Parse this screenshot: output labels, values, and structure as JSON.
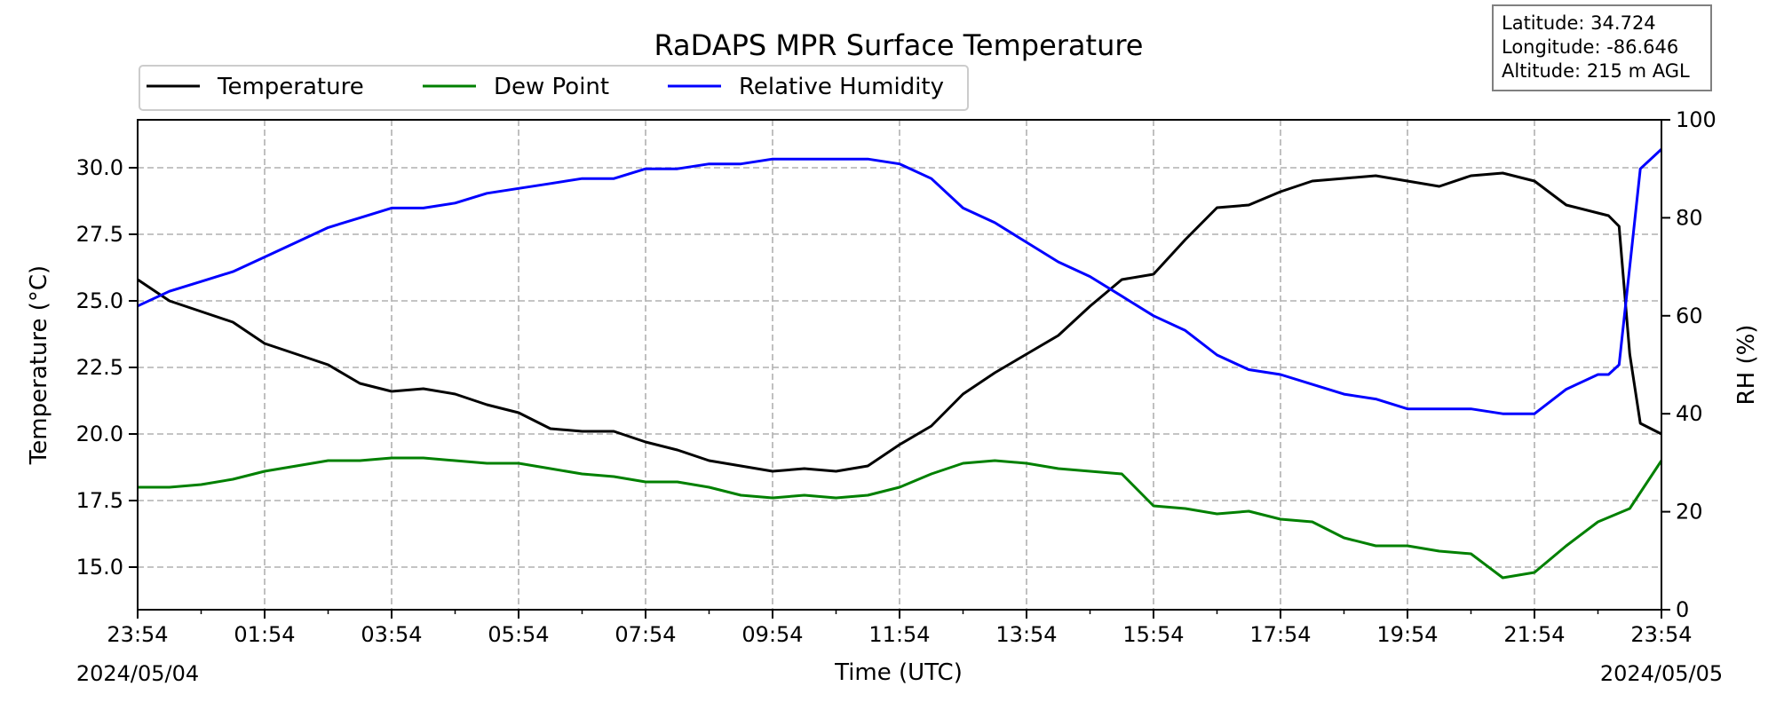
{
  "chart_data": {
    "type": "line",
    "title": "RaDAPS MPR Surface Temperature",
    "xlabel": "Time (UTC)",
    "ylabel_left": "Temperature (°C)",
    "ylabel_right": "RH (%)",
    "x_start": "2024-05-04 23:54",
    "x_end": "2024-05-05 23:54",
    "x_tick_labels": [
      "23:54",
      "01:54",
      "03:54",
      "05:54",
      "07:54",
      "09:54",
      "11:54",
      "13:54",
      "15:54",
      "17:54",
      "19:54",
      "21:54",
      "23:54"
    ],
    "date_labels": {
      "start": "2024/05/04",
      "end": "2024/05/05"
    },
    "ylim_left": [
      13.4,
      31.8
    ],
    "ylim_right": [
      0,
      100
    ],
    "y_ticks_left": [
      15.0,
      17.5,
      20.0,
      22.5,
      25.0,
      27.5,
      30.0
    ],
    "y_tick_labels_left": [
      "15.0",
      "17.5",
      "20.0",
      "22.5",
      "25.0",
      "27.5",
      "30.0"
    ],
    "y_ticks_right": [
      0,
      20,
      40,
      60,
      80,
      100
    ],
    "y_tick_labels_right": [
      "0",
      "20",
      "40",
      "60",
      "80",
      "100"
    ],
    "grid": true,
    "legend_position": "top-left",
    "series": [
      {
        "name": "Temperature",
        "axis": "left",
        "color": "#000000",
        "x": [
          "2024-05-04 23:54",
          "2024-05-05 00:24",
          "2024-05-05 00:54",
          "2024-05-05 01:24",
          "2024-05-05 01:54",
          "2024-05-05 02:24",
          "2024-05-05 02:54",
          "2024-05-05 03:24",
          "2024-05-05 03:54",
          "2024-05-05 04:24",
          "2024-05-05 04:54",
          "2024-05-05 05:24",
          "2024-05-05 05:54",
          "2024-05-05 06:24",
          "2024-05-05 06:54",
          "2024-05-05 07:24",
          "2024-05-05 07:54",
          "2024-05-05 08:24",
          "2024-05-05 08:54",
          "2024-05-05 09:24",
          "2024-05-05 09:54",
          "2024-05-05 10:24",
          "2024-05-05 10:54",
          "2024-05-05 11:24",
          "2024-05-05 11:54",
          "2024-05-05 12:24",
          "2024-05-05 12:54",
          "2024-05-05 13:24",
          "2024-05-05 13:54",
          "2024-05-05 14:24",
          "2024-05-05 14:54",
          "2024-05-05 15:24",
          "2024-05-05 15:54",
          "2024-05-05 16:24",
          "2024-05-05 16:54",
          "2024-05-05 17:24",
          "2024-05-05 17:54",
          "2024-05-05 18:24",
          "2024-05-05 18:54",
          "2024-05-05 19:24",
          "2024-05-05 19:54",
          "2024-05-05 20:24",
          "2024-05-05 20:54",
          "2024-05-05 21:24",
          "2024-05-05 21:54",
          "2024-05-05 22:24",
          "2024-05-05 22:54",
          "2024-05-05 23:04",
          "2024-05-05 23:14",
          "2024-05-05 23:24",
          "2024-05-05 23:34",
          "2024-05-05 23:54"
        ],
        "values": [
          25.8,
          25.0,
          24.6,
          24.2,
          23.4,
          23.0,
          22.6,
          21.9,
          21.6,
          21.7,
          21.5,
          21.1,
          20.8,
          20.2,
          20.1,
          20.1,
          19.7,
          19.4,
          19.0,
          18.8,
          18.6,
          18.7,
          18.6,
          18.8,
          19.6,
          20.3,
          21.5,
          22.3,
          23.0,
          23.7,
          24.8,
          25.8,
          26.0,
          27.3,
          28.5,
          28.6,
          29.1,
          29.5,
          29.6,
          29.7,
          29.5,
          29.3,
          29.7,
          29.8,
          29.5,
          28.6,
          28.3,
          28.2,
          27.8,
          23.0,
          20.4,
          20.0
        ]
      },
      {
        "name": "Dew Point",
        "axis": "left",
        "color": "#008000",
        "x": [
          "2024-05-04 23:54",
          "2024-05-05 00:24",
          "2024-05-05 00:54",
          "2024-05-05 01:24",
          "2024-05-05 01:54",
          "2024-05-05 02:24",
          "2024-05-05 02:54",
          "2024-05-05 03:24",
          "2024-05-05 03:54",
          "2024-05-05 04:24",
          "2024-05-05 04:54",
          "2024-05-05 05:24",
          "2024-05-05 05:54",
          "2024-05-05 06:24",
          "2024-05-05 06:54",
          "2024-05-05 07:24",
          "2024-05-05 07:54",
          "2024-05-05 08:24",
          "2024-05-05 08:54",
          "2024-05-05 09:24",
          "2024-05-05 09:54",
          "2024-05-05 10:24",
          "2024-05-05 10:54",
          "2024-05-05 11:24",
          "2024-05-05 11:54",
          "2024-05-05 12:24",
          "2024-05-05 12:54",
          "2024-05-05 13:24",
          "2024-05-05 13:54",
          "2024-05-05 14:24",
          "2024-05-05 14:54",
          "2024-05-05 15:24",
          "2024-05-05 15:54",
          "2024-05-05 16:24",
          "2024-05-05 16:54",
          "2024-05-05 17:24",
          "2024-05-05 17:54",
          "2024-05-05 18:24",
          "2024-05-05 18:54",
          "2024-05-05 19:24",
          "2024-05-05 19:54",
          "2024-05-05 20:24",
          "2024-05-05 20:54",
          "2024-05-05 21:24",
          "2024-05-05 21:54",
          "2024-05-05 22:24",
          "2024-05-05 22:54",
          "2024-05-05 23:24",
          "2024-05-05 23:54"
        ],
        "values": [
          18.0,
          18.0,
          18.1,
          18.3,
          18.6,
          18.8,
          19.0,
          19.0,
          19.1,
          19.1,
          19.0,
          18.9,
          18.9,
          18.7,
          18.5,
          18.4,
          18.2,
          18.2,
          18.0,
          17.7,
          17.6,
          17.7,
          17.6,
          17.7,
          18.0,
          18.5,
          18.9,
          19.0,
          18.9,
          18.7,
          18.6,
          18.5,
          17.3,
          17.2,
          17.0,
          17.1,
          16.8,
          16.7,
          16.1,
          15.8,
          15.8,
          15.6,
          15.5,
          14.6,
          14.8,
          15.8,
          16.7,
          17.2,
          19.0
        ]
      },
      {
        "name": "Relative Humidity",
        "axis": "right",
        "color": "#0000ff",
        "x": [
          "2024-05-04 23:54",
          "2024-05-05 00:24",
          "2024-05-05 00:54",
          "2024-05-05 01:24",
          "2024-05-05 01:54",
          "2024-05-05 02:24",
          "2024-05-05 02:54",
          "2024-05-05 03:24",
          "2024-05-05 03:54",
          "2024-05-05 04:24",
          "2024-05-05 04:54",
          "2024-05-05 05:24",
          "2024-05-05 05:54",
          "2024-05-05 06:24",
          "2024-05-05 06:54",
          "2024-05-05 07:24",
          "2024-05-05 07:54",
          "2024-05-05 08:24",
          "2024-05-05 08:54",
          "2024-05-05 09:24",
          "2024-05-05 09:54",
          "2024-05-05 10:24",
          "2024-05-05 10:54",
          "2024-05-05 11:24",
          "2024-05-05 11:54",
          "2024-05-05 12:24",
          "2024-05-05 12:54",
          "2024-05-05 13:24",
          "2024-05-05 13:54",
          "2024-05-05 14:24",
          "2024-05-05 14:54",
          "2024-05-05 15:24",
          "2024-05-05 15:54",
          "2024-05-05 16:24",
          "2024-05-05 16:54",
          "2024-05-05 17:24",
          "2024-05-05 17:54",
          "2024-05-05 18:24",
          "2024-05-05 18:54",
          "2024-05-05 19:24",
          "2024-05-05 19:54",
          "2024-05-05 20:24",
          "2024-05-05 20:54",
          "2024-05-05 21:24",
          "2024-05-05 21:54",
          "2024-05-05 22:24",
          "2024-05-05 22:54",
          "2024-05-05 23:04",
          "2024-05-05 23:14",
          "2024-05-05 23:24",
          "2024-05-05 23:34",
          "2024-05-05 23:54"
        ],
        "values": [
          62,
          65,
          67,
          69,
          72,
          75,
          78,
          80,
          82,
          82,
          83,
          85,
          86,
          87,
          88,
          88,
          90,
          90,
          91,
          91,
          92,
          92,
          92,
          92,
          91,
          88,
          82,
          79,
          75,
          71,
          68,
          64,
          60,
          57,
          52,
          49,
          48,
          46,
          44,
          43,
          41,
          41,
          41,
          40,
          40,
          45,
          48,
          48,
          50,
          70,
          90,
          94
        ]
      }
    ]
  },
  "legend": {
    "items": [
      {
        "label": "Temperature",
        "color": "#000000"
      },
      {
        "label": "Dew Point",
        "color": "#008000"
      },
      {
        "label": "Relative Humidity",
        "color": "#0000ff"
      }
    ]
  },
  "info_box": {
    "latitude": "Latitude: 34.724",
    "longitude": "Longitude: -86.646",
    "altitude": "Altitude: 215 m AGL"
  }
}
